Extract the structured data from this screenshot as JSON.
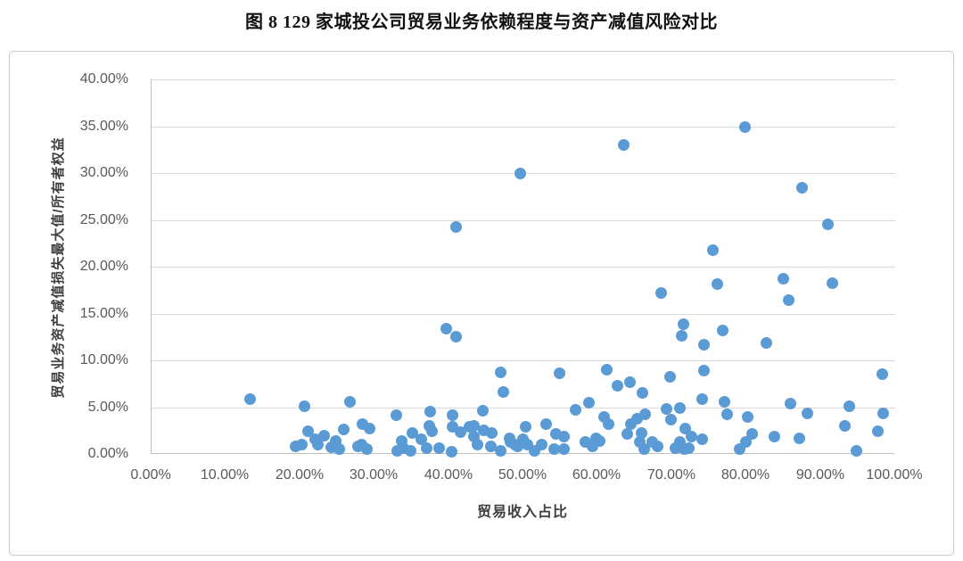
{
  "figure": {
    "title": "图 8  129 家城投公司贸易业务依赖程度与资产减值风险对比"
  },
  "colors": {
    "marker": "#5B9BD5",
    "gridline": "#D9D9D9",
    "axis_line": "#BFBFBF",
    "axis_text": "#595959",
    "card_border": "#C9C9C9",
    "title_text": "#111111"
  },
  "chart_data": {
    "type": "scatter",
    "title": "图 8  129 家城投公司贸易业务依赖程度与资产减值风险对比",
    "xlabel": "贸易收入占比",
    "ylabel": "贸易业务资产减值损失最大值/所有者权益",
    "xlim": [
      0,
      100
    ],
    "ylim": [
      0,
      40
    ],
    "x_tick_labels": [
      "0.00%",
      "10.00%",
      "20.00%",
      "30.00%",
      "40.00%",
      "50.00%",
      "60.00%",
      "70.00%",
      "80.00%",
      "90.00%",
      "100.00%"
    ],
    "y_tick_labels_top_to_bottom": [
      "40.00%",
      "35.00%",
      "30.00%",
      "25.00%",
      "20.00%",
      "15.00%",
      "10.00%",
      "5.00%",
      "0.00%"
    ],
    "grid": "horizontal-only",
    "legend_position": "none",
    "point_count": 129,
    "points_unit": "percent [x: 贸易收入占比, y: 减值损失/所有者权益]",
    "points": [
      [
        13.3,
        5.9
      ],
      [
        63.5,
        33.0
      ],
      [
        49.6,
        30.0
      ],
      [
        41.0,
        24.2
      ],
      [
        79.8,
        34.9
      ],
      [
        87.5,
        28.4
      ],
      [
        90.9,
        24.5
      ],
      [
        75.5,
        21.8
      ],
      [
        68.5,
        17.2
      ],
      [
        76.1,
        18.1
      ],
      [
        85.0,
        18.7
      ],
      [
        85.7,
        16.4
      ],
      [
        91.6,
        18.2
      ],
      [
        71.5,
        13.9
      ],
      [
        71.3,
        12.6
      ],
      [
        74.3,
        11.7
      ],
      [
        76.8,
        13.2
      ],
      [
        82.7,
        11.9
      ],
      [
        39.6,
        13.4
      ],
      [
        40.9,
        12.5
      ],
      [
        98.3,
        8.5
      ],
      [
        74.3,
        8.9
      ],
      [
        69.7,
        8.2
      ],
      [
        46.9,
        8.7
      ],
      [
        54.8,
        8.6
      ],
      [
        61.2,
        9.0
      ],
      [
        62.6,
        7.3
      ],
      [
        64.3,
        7.7
      ],
      [
        66.0,
        6.5
      ],
      [
        47.3,
        6.6
      ],
      [
        20.6,
        5.1
      ],
      [
        26.7,
        5.6
      ],
      [
        37.5,
        4.5
      ],
      [
        40.5,
        4.1
      ],
      [
        44.5,
        4.6
      ],
      [
        57.0,
        4.7
      ],
      [
        58.8,
        5.5
      ],
      [
        60.9,
        4.0
      ],
      [
        61.4,
        3.2
      ],
      [
        65.3,
        3.8
      ],
      [
        64.4,
        3.2
      ],
      [
        74.1,
        5.9
      ],
      [
        77.0,
        5.6
      ],
      [
        85.9,
        5.4
      ],
      [
        93.8,
        5.1
      ],
      [
        69.2,
        4.8
      ],
      [
        71.1,
        4.9
      ],
      [
        69.8,
        3.7
      ],
      [
        66.4,
        4.2
      ],
      [
        77.4,
        4.2
      ],
      [
        80.1,
        4.0
      ],
      [
        88.2,
        4.3
      ],
      [
        93.2,
        3.0
      ],
      [
        98.4,
        4.3
      ],
      [
        97.7,
        2.4
      ],
      [
        87.1,
        1.7
      ],
      [
        83.8,
        1.9
      ],
      [
        80.7,
        2.1
      ],
      [
        71.8,
        2.7
      ],
      [
        72.6,
        1.9
      ],
      [
        32.9,
        4.1
      ],
      [
        37.3,
        3.0
      ],
      [
        37.7,
        2.4
      ],
      [
        43.3,
        3.0
      ],
      [
        53.0,
        3.2
      ],
      [
        42.7,
        2.9
      ],
      [
        40.5,
        2.9
      ],
      [
        28.3,
        3.2
      ],
      [
        29.3,
        2.7
      ],
      [
        25.8,
        2.6
      ],
      [
        21.0,
        2.4
      ],
      [
        22.0,
        1.6
      ],
      [
        23.2,
        2.0
      ],
      [
        24.8,
        1.4
      ],
      [
        35.1,
        2.2
      ],
      [
        36.3,
        1.6
      ],
      [
        33.6,
        1.4
      ],
      [
        41.5,
        2.3
      ],
      [
        43.4,
        1.9
      ],
      [
        45.8,
        2.2
      ],
      [
        44.7,
        2.5
      ],
      [
        48.1,
        1.7
      ],
      [
        49.9,
        1.6
      ],
      [
        50.3,
        2.9
      ],
      [
        54.4,
        2.1
      ],
      [
        55.5,
        1.9
      ],
      [
        59.8,
        1.7
      ],
      [
        64.0,
        2.1
      ],
      [
        65.9,
        2.2
      ],
      [
        19.4,
        0.8
      ],
      [
        20.2,
        1.0
      ],
      [
        22.4,
        1.0
      ],
      [
        24.2,
        0.7
      ],
      [
        25.2,
        0.5
      ],
      [
        27.7,
        0.8
      ],
      [
        28.2,
        1.0
      ],
      [
        28.9,
        0.5
      ],
      [
        33.0,
        0.3
      ],
      [
        33.9,
        0.6
      ],
      [
        34.8,
        0.3
      ],
      [
        37.0,
        0.6
      ],
      [
        38.7,
        0.6
      ],
      [
        40.3,
        0.2
      ],
      [
        43.8,
        1.0
      ],
      [
        45.6,
        0.8
      ],
      [
        46.9,
        0.3
      ],
      [
        48.3,
        1.3
      ],
      [
        48.9,
        1.0
      ],
      [
        49.2,
        0.8
      ],
      [
        50.5,
        1.0
      ],
      [
        51.5,
        0.3
      ],
      [
        52.5,
        1.0
      ],
      [
        54.1,
        0.5
      ],
      [
        55.4,
        0.5
      ],
      [
        58.3,
        1.3
      ],
      [
        59.3,
        0.8
      ],
      [
        60.3,
        1.4
      ],
      [
        65.6,
        1.3
      ],
      [
        66.2,
        0.5
      ],
      [
        67.3,
        1.3
      ],
      [
        68.1,
        0.8
      ],
      [
        70.4,
        0.6
      ],
      [
        71.0,
        1.3
      ],
      [
        71.6,
        0.5
      ],
      [
        72.3,
        0.6
      ],
      [
        74.0,
        1.6
      ],
      [
        79.1,
        0.5
      ],
      [
        79.9,
        1.3
      ],
      [
        94.8,
        0.3
      ]
    ]
  }
}
